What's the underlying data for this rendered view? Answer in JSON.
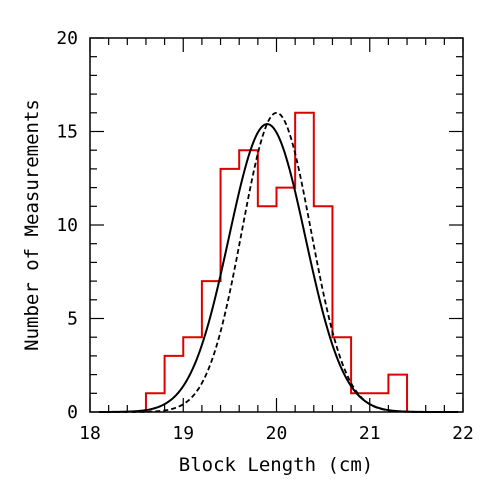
{
  "chart_data": {
    "type": "line",
    "xlabel": "Block Length (cm)",
    "ylabel": "Number of Measurements",
    "xlim": [
      18,
      22
    ],
    "ylim": [
      0,
      20
    ],
    "x_ticks": [
      "18",
      "19",
      "20",
      "21",
      "22"
    ],
    "y_ticks": [
      "0",
      "5",
      "10",
      "15",
      "20"
    ],
    "grid": false,
    "histogram": {
      "color": "#dd0000",
      "bin_width": 0.2,
      "bins": [
        {
          "x0": 18.6,
          "count": 1
        },
        {
          "x0": 18.8,
          "count": 3
        },
        {
          "x0": 19.0,
          "count": 4
        },
        {
          "x0": 19.2,
          "count": 7
        },
        {
          "x0": 19.4,
          "count": 13
        },
        {
          "x0": 19.6,
          "count": 14
        },
        {
          "x0": 19.8,
          "count": 11
        },
        {
          "x0": 20.0,
          "count": 12
        },
        {
          "x0": 20.2,
          "count": 16
        },
        {
          "x0": 20.4,
          "count": 11
        },
        {
          "x0": 20.6,
          "count": 4
        },
        {
          "x0": 20.8,
          "count": 1
        },
        {
          "x0": 21.0,
          "count": 1
        },
        {
          "x0": 21.2,
          "count": 2
        }
      ]
    },
    "series": [
      {
        "style": "solid",
        "color": "#000000",
        "mean": 19.9,
        "sigma": 0.41,
        "peak": 15.4
      },
      {
        "style": "dashed",
        "color": "#000000",
        "mean": 20.0,
        "sigma": 0.37,
        "peak": 16.0
      }
    ]
  }
}
